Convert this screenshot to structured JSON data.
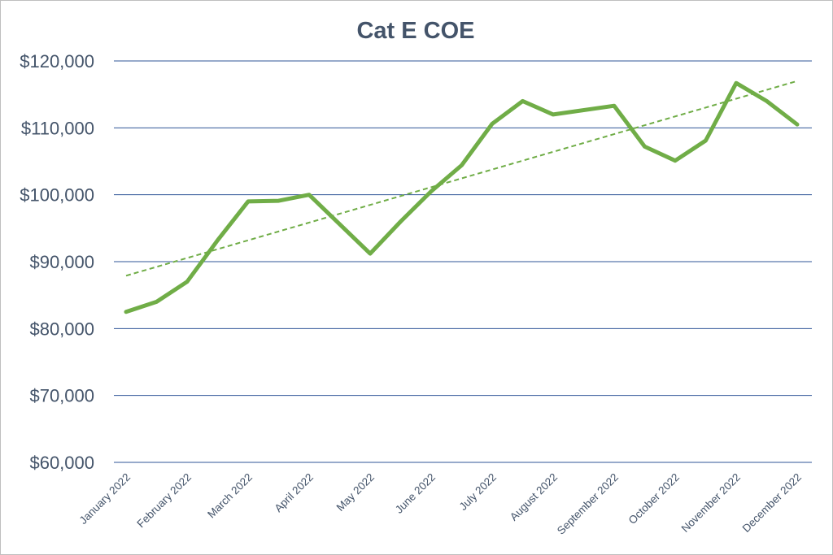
{
  "chart_data": {
    "type": "line",
    "title": "Cat E COE",
    "xlabel": "",
    "ylabel": "",
    "ylim": [
      60000,
      120000
    ],
    "yticks": [
      "$60,000",
      "$70,000",
      "$80,000",
      "$90,000",
      "$100,000",
      "$110,000",
      "$120,000"
    ],
    "ytick_values": [
      60000,
      70000,
      80000,
      90000,
      100000,
      110000,
      120000
    ],
    "grid": true,
    "legend": "none",
    "categories": [
      "January 2022",
      "February 2022",
      "March 2022",
      "April 2022",
      "May 2022",
      "June 2022",
      "July 2022",
      "August 2022",
      "September 2022",
      "October 2022",
      "November 2022",
      "December 2022"
    ],
    "x": [
      0,
      0.5,
      1,
      1.5,
      2,
      2.5,
      3,
      4,
      4.5,
      5,
      5.5,
      6,
      6.5,
      7,
      8,
      8.5,
      9,
      9.5,
      10,
      10.5,
      11
    ],
    "series": [
      {
        "color": "#70ad47",
        "values": [
          82500,
          84000,
          87000,
          93200,
          99000,
          99100,
          100000,
          91200,
          96000,
          100500,
          104400,
          110600,
          114000,
          112000,
          113300,
          107200,
          105100,
          108100,
          116700,
          114000,
          110500
        ]
      }
    ],
    "trendline": {
      "type": "linear",
      "style": "dashed",
      "color": "#70ad47",
      "start": 87900,
      "end": 117000
    }
  }
}
